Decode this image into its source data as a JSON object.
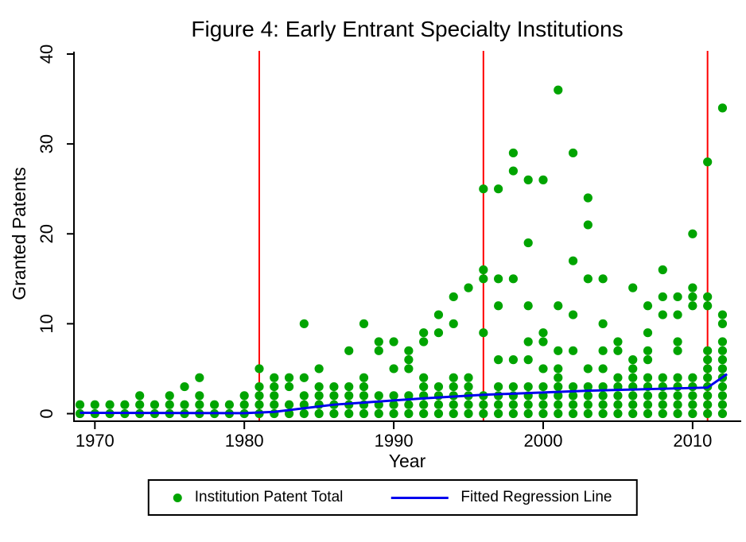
{
  "figure": {
    "title": "Figure 4: Early Entrant Specialty Institutions",
    "x_axis_label": "Year",
    "y_axis_label": "Granted Patents"
  },
  "legend": {
    "scatter_label": "Institution Patent Total",
    "line_label": "Fitted Regression Line"
  },
  "colors": {
    "scatter": "#00a400",
    "regression": "#0000ee",
    "event_line": "#ff0000",
    "axis": "#000000"
  },
  "chart_data": {
    "type": "scatter",
    "title": "Figure 4: Early Entrant Specialty Institutions",
    "xlabel": "Year",
    "ylabel": "Granted Patents",
    "xlim": [
      1968.6,
      2013.2
    ],
    "ylim": [
      0,
      40
    ],
    "x_ticks": [
      1970,
      1980,
      1990,
      2000,
      2010
    ],
    "y_ticks": [
      0,
      10,
      20,
      30,
      40
    ],
    "grid": false,
    "legend_position": "bottom",
    "vertical_reference_lines": [
      1981,
      1996,
      2011
    ],
    "series": [
      {
        "name": "Institution Patent Total",
        "type": "scatter",
        "points_by_year": {
          "1969": [
            0,
            1
          ],
          "1970": [
            0,
            1
          ],
          "1971": [
            0,
            1
          ],
          "1972": [
            0,
            1
          ],
          "1973": [
            0,
            1,
            2
          ],
          "1974": [
            0,
            1
          ],
          "1975": [
            0,
            1,
            2
          ],
          "1976": [
            0,
            1,
            3
          ],
          "1977": [
            0,
            1,
            2,
            4
          ],
          "1978": [
            0,
            1
          ],
          "1979": [
            0,
            1
          ],
          "1980": [
            0,
            1,
            2
          ],
          "1981": [
            0,
            1,
            2,
            3,
            5
          ],
          "1982": [
            0,
            1,
            2,
            3,
            4
          ],
          "1983": [
            0,
            1,
            3,
            4
          ],
          "1984": [
            0,
            1,
            2,
            4,
            10
          ],
          "1985": [
            0,
            1,
            2,
            3,
            5
          ],
          "1986": [
            0,
            1,
            2,
            3
          ],
          "1987": [
            0,
            1,
            2,
            3,
            7
          ],
          "1988": [
            0,
            1,
            2,
            3,
            4,
            10
          ],
          "1989": [
            0,
            1,
            2,
            7,
            8
          ],
          "1990": [
            0,
            1,
            2,
            5,
            8
          ],
          "1991": [
            0,
            1,
            2,
            5,
            6,
            7
          ],
          "1992": [
            0,
            1,
            2,
            3,
            4,
            8,
            9
          ],
          "1993": [
            0,
            1,
            2,
            3,
            9,
            11
          ],
          "1994": [
            0,
            1,
            2,
            3,
            4,
            10,
            13
          ],
          "1995": [
            0,
            1,
            2,
            3,
            4,
            14
          ],
          "1996": [
            0,
            1,
            2,
            9,
            15,
            16,
            25
          ],
          "1997": [
            0,
            1,
            2,
            3,
            6,
            12,
            15,
            25
          ],
          "1998": [
            0,
            1,
            2,
            3,
            6,
            15,
            27,
            29
          ],
          "1999": [
            0,
            1,
            2,
            3,
            6,
            8,
            12,
            19,
            26
          ],
          "2000": [
            0,
            1,
            2,
            3,
            5,
            8,
            9,
            26
          ],
          "2001": [
            0,
            1,
            2,
            3,
            4,
            5,
            7,
            12,
            36
          ],
          "2002": [
            0,
            1,
            2,
            3,
            7,
            11,
            17,
            29
          ],
          "2003": [
            0,
            1,
            2,
            3,
            5,
            15,
            21,
            24
          ],
          "2004": [
            0,
            1,
            2,
            3,
            5,
            7,
            10,
            15
          ],
          "2005": [
            0,
            1,
            2,
            3,
            4,
            7,
            8
          ],
          "2006": [
            0,
            1,
            2,
            3,
            4,
            5,
            6,
            14
          ],
          "2007": [
            0,
            1,
            2,
            3,
            4,
            6,
            7,
            9,
            12
          ],
          "2008": [
            0,
            1,
            2,
            3,
            4,
            11,
            13,
            16
          ],
          "2009": [
            0,
            1,
            2,
            3,
            4,
            7,
            8,
            11,
            13
          ],
          "2010": [
            0,
            1,
            2,
            3,
            4,
            12,
            13,
            14,
            20
          ],
          "2011": [
            0,
            1,
            2,
            3,
            4,
            5,
            6,
            7,
            12,
            13,
            28
          ],
          "2012": [
            0,
            1,
            2,
            3,
            4,
            5,
            6,
            7,
            8,
            10,
            11,
            34
          ]
        }
      },
      {
        "name": "Fitted Regression Line",
        "type": "line",
        "points": [
          [
            1969,
            0.1
          ],
          [
            1980,
            0.05
          ],
          [
            1982,
            0.2
          ],
          [
            1986,
            1.0
          ],
          [
            1992,
            1.7
          ],
          [
            1996,
            2.1
          ],
          [
            2003,
            2.55
          ],
          [
            2011,
            2.9
          ],
          [
            2012.3,
            4.4
          ]
        ]
      }
    ]
  }
}
